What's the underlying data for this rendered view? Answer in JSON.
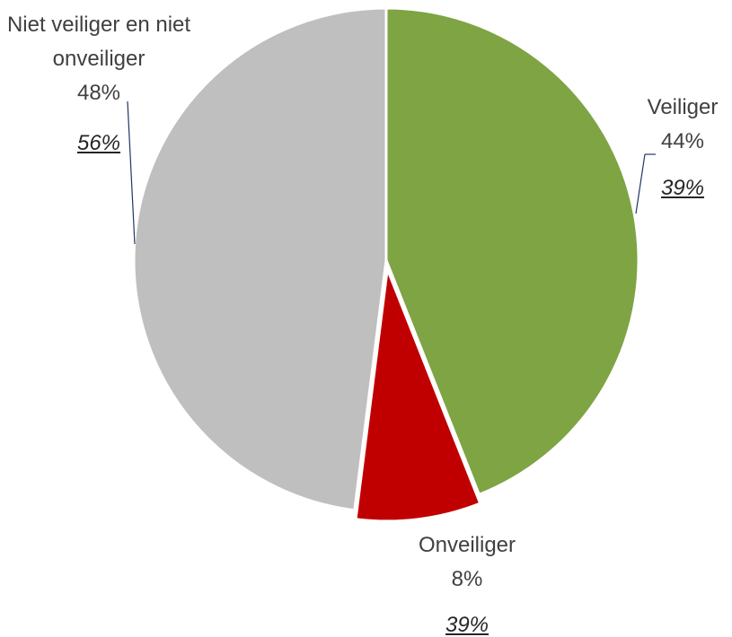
{
  "chart_data": {
    "type": "pie",
    "categories": [
      "Veiliger",
      "Onveiliger",
      "Niet veiliger en niet onveiliger"
    ],
    "values": [
      44,
      8,
      48
    ],
    "value_labels": [
      "44%",
      "8%",
      "48%"
    ],
    "reference_values": [
      39,
      39,
      56
    ],
    "reference_labels": [
      "39%",
      "39%",
      "56%"
    ],
    "colors": [
      "#7ea443",
      "#c00000",
      "#bfbfbf"
    ]
  }
}
